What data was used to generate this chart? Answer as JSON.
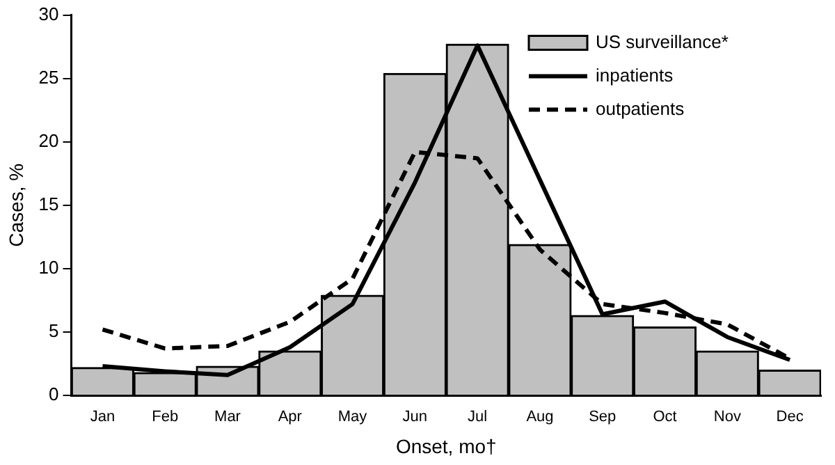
{
  "chart_data": {
    "type": "bar",
    "xlabel": "Onset, mo†",
    "ylabel": "Cases, %",
    "categories": [
      "Jan",
      "Feb",
      "Mar",
      "Apr",
      "May",
      "Jun",
      "Jul",
      "Aug",
      "Sep",
      "Oct",
      "Nov",
      "Dec"
    ],
    "series": [
      {
        "name": "US surveillance*",
        "color": "#c0c0c0",
        "values": [
          2.2,
          1.8,
          2.3,
          3.5,
          7.9,
          25.4,
          27.7,
          11.9,
          6.3,
          5.4,
          3.5,
          2.0
        ]
      },
      {
        "name": "inpatients",
        "type": "line",
        "color": "#000000",
        "line_style": "solid",
        "values": [
          2.3,
          1.9,
          1.6,
          3.8,
          7.2,
          16.8,
          27.6,
          17.0,
          6.4,
          7.4,
          4.6,
          2.8
        ]
      },
      {
        "name": "outpatients",
        "type": "line",
        "color": "#000000",
        "line_style": "dashed",
        "values": [
          5.2,
          3.7,
          3.9,
          5.8,
          9.2,
          19.2,
          18.7,
          11.5,
          7.2,
          6.5,
          5.6,
          2.9
        ]
      }
    ],
    "ylim": [
      0,
      30
    ],
    "yticks": [
      0,
      5,
      10,
      15,
      20,
      25,
      30
    ],
    "grid": false,
    "legend": "top right",
    "marker": "none"
  }
}
